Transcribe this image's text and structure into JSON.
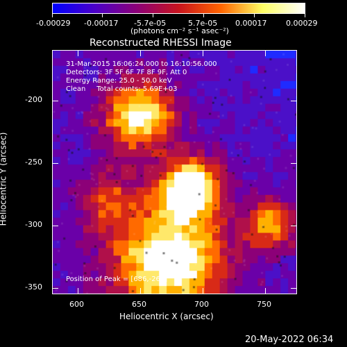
{
  "colorbar": {
    "labels": [
      "-0.00029",
      "-0.00017",
      "-5.7e-05",
      "5.7e-05",
      "0.00017",
      "0.00029"
    ],
    "units": "(photons cm⁻² s⁻¹ asec⁻²)",
    "colors": [
      "#0000ff",
      "#4b00c8",
      "#8c0078",
      "#c8141e",
      "#ff6400",
      "#ffff64",
      "#ffffff"
    ]
  },
  "title": "Reconstructed RHESSI Image",
  "info": {
    "line1": "31-Mar-2015 16:06:24.000 to 16:10:56.000",
    "line2": "Detectors: 3F 5F 6F 7F 8F 9F, Att 0",
    "line3": "Energy Range: 25.0 - 50.0 keV",
    "line4": "Clean     Total counts: 5.69E+03",
    "peak": "Position of Peak = [686,-262]"
  },
  "axes": {
    "xlabel": "Heliocentric X (arcsec)",
    "ylabel": "Heliocentric Y (arcsec)",
    "xticks": [
      "600",
      "650",
      "700",
      "750"
    ],
    "yticks": [
      "-200",
      "-250",
      "-300",
      "-350"
    ]
  },
  "footer": {
    "date": "20-May-2022 06:34"
  }
}
